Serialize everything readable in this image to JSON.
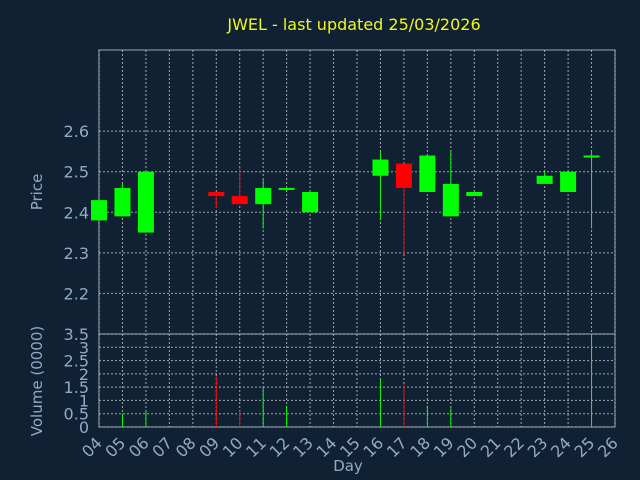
{
  "chart_data": {
    "type": "candlestick",
    "title": "JWEL - last updated 25/03/2026",
    "xlabel": "Day",
    "colors": {
      "up": "#00ff00",
      "down": "#ff0000",
      "background": "#0f2133",
      "title": "#f3f71a",
      "text": "#94a9c7"
    },
    "x_ticks": [
      "04",
      "05",
      "06",
      "07",
      "08",
      "09",
      "10",
      "11",
      "12",
      "13",
      "14",
      "15",
      "16",
      "17",
      "18",
      "19",
      "20",
      "21",
      "22",
      "23",
      "24",
      "25",
      "26"
    ],
    "price_panel": {
      "ylabel": "Price",
      "ylim": [
        2.1,
        2.8
      ],
      "y_ticks": [
        "2.2",
        "2.3",
        "2.4",
        "2.5",
        "2.6"
      ],
      "y_values": [
        2.2,
        2.3,
        2.4,
        2.5,
        2.6
      ]
    },
    "volume_panel": {
      "ylabel": "Volume (0000)",
      "ylim": [
        0,
        3.5
      ],
      "y_ticks": [
        "0",
        "0.5",
        "1",
        "1.5",
        "2",
        "2.5",
        "3",
        "3.5"
      ],
      "y_values": [
        0,
        0.5,
        1,
        1.5,
        2,
        2.5,
        3,
        3.5
      ]
    },
    "candles": [
      {
        "day": 4,
        "open": 2.38,
        "high": 2.43,
        "low": 2.38,
        "close": 2.43,
        "volume": 0.0
      },
      {
        "day": 5,
        "open": 2.39,
        "high": 2.47,
        "low": 2.39,
        "close": 2.46,
        "volume": 0.5
      },
      {
        "day": 6,
        "open": 2.35,
        "high": 2.5,
        "low": 2.35,
        "close": 2.5,
        "volume": 0.6
      },
      {
        "day": 9,
        "open": 2.45,
        "high": 2.45,
        "low": 2.41,
        "close": 2.44,
        "volume": 1.9
      },
      {
        "day": 10,
        "open": 2.44,
        "high": 2.51,
        "low": 2.42,
        "close": 2.42,
        "volume": 0.6
      },
      {
        "day": 11,
        "open": 2.42,
        "high": 2.48,
        "low": 2.36,
        "close": 2.46,
        "volume": 1.5
      },
      {
        "day": 12,
        "open": 2.46,
        "high": 2.46,
        "low": 2.45,
        "close": 2.46,
        "volume": 0.8
      },
      {
        "day": 13,
        "open": 2.4,
        "high": 2.45,
        "low": 2.4,
        "close": 2.45,
        "volume": 0.0
      },
      {
        "day": 16,
        "open": 2.49,
        "high": 2.55,
        "low": 2.38,
        "close": 2.53,
        "volume": 1.8
      },
      {
        "day": 17,
        "open": 2.52,
        "high": 2.52,
        "low": 2.3,
        "close": 2.46,
        "volume": 1.6
      },
      {
        "day": 18,
        "open": 2.45,
        "high": 2.54,
        "low": 2.45,
        "close": 2.54,
        "volume": 0.8
      },
      {
        "day": 19,
        "open": 2.39,
        "high": 2.55,
        "low": 2.39,
        "close": 2.47,
        "volume": 0.7
      },
      {
        "day": 20,
        "open": 2.44,
        "high": 2.45,
        "low": 2.44,
        "close": 2.45,
        "volume": 0.0
      },
      {
        "day": 23,
        "open": 2.47,
        "high": 2.5,
        "low": 2.47,
        "close": 2.49,
        "volume": 0.0
      },
      {
        "day": 24,
        "open": 2.45,
        "high": 2.5,
        "low": 2.45,
        "close": 2.5,
        "volume": 0.0
      },
      {
        "day": 25,
        "open": 2.54,
        "high": 2.55,
        "low": 2.36,
        "close": 2.54,
        "volume": 3.5
      }
    ]
  }
}
